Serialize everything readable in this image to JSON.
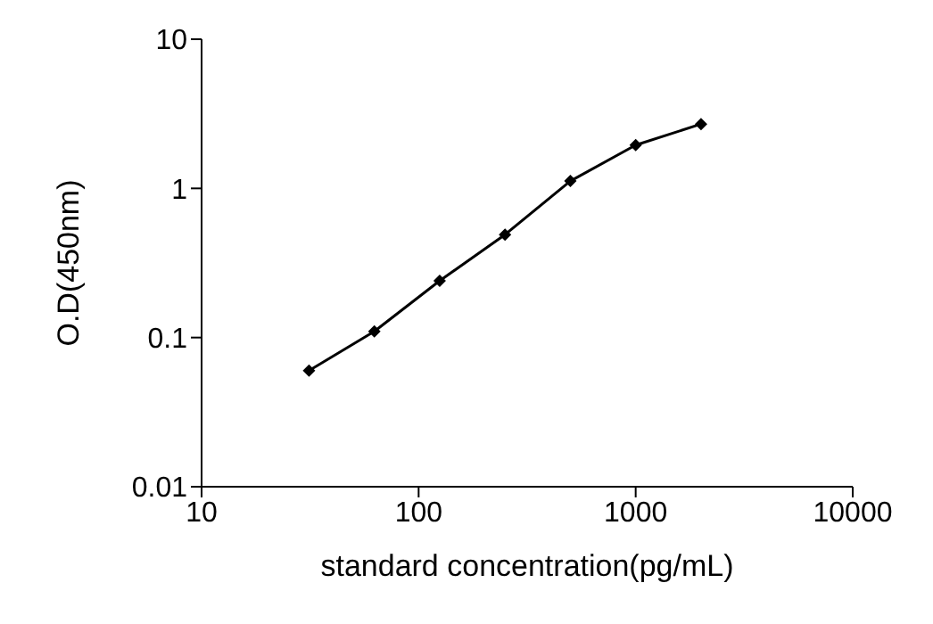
{
  "chart_data": {
    "type": "line",
    "xlabel": "standard concentration(pg/mL)",
    "ylabel": "O.D(450nm)",
    "x": [
      31.25,
      62.5,
      125,
      250,
      500,
      1000,
      2000
    ],
    "series": [
      {
        "color": "#000000",
        "values": [
          0.06,
          0.11,
          0.24,
          0.49,
          1.12,
          1.95,
          2.7
        ]
      }
    ],
    "log": "xy",
    "xlim": [
      10,
      10000
    ],
    "xticks": [
      10,
      100,
      1000,
      10000
    ],
    "ylim": [
      0.01,
      10
    ],
    "yticks": [
      0.01,
      0.1,
      1,
      10
    ],
    "marker": "diamond",
    "grid": false,
    "legend": false
  }
}
